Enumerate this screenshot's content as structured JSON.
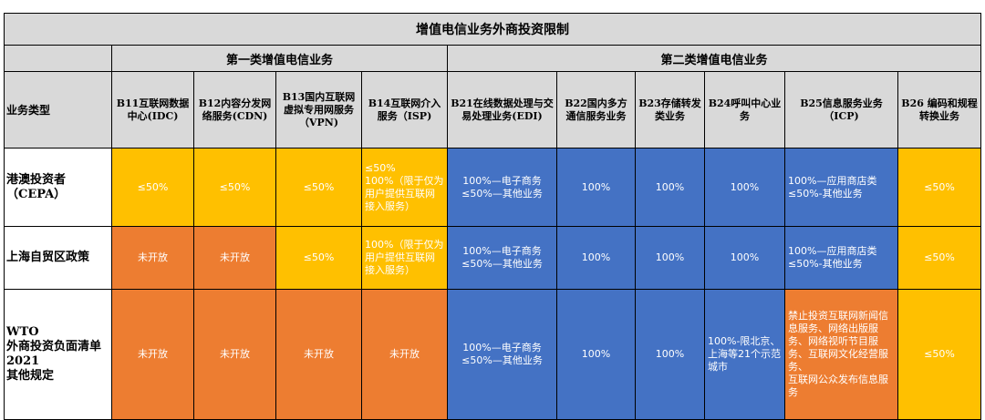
{
  "title": "增值电信业务外商投资限制",
  "group1": "第一类增值电信业务",
  "group2": "第二类增值电信业务",
  "row_header_label": "业务类型",
  "columns": [
    "B11互联网数据中心(IDC)",
    "B12内容分发网络服务(CDN)",
    "B13国内互联网虚拟专用网服务（VPN)",
    "B14互联网介入服务（ISP)",
    "B21在线数据处理与交易处理业务(EDI)",
    "B22国内多方通信服务业务",
    "B23存储转发类业务",
    "B24呼叫中心业务",
    "B25信息服务业务（ICP)",
    "B26 编码和规程转换业务"
  ],
  "rows": [
    {
      "label": "港澳投资者（CEPA）",
      "cells": [
        "≤50%",
        "≤50%",
        "≤50%",
        "≤50%\n100%（限于仅为用户提供互联网接入服务）",
        "100%—电子商务\n≤50%—其他业务",
        "100%",
        "100%",
        "100%",
        "100%—应用商店类\n≤50%-其他业务",
        "≤50%"
      ]
    },
    {
      "label": "上海自贸区政策",
      "cells": [
        "未开放",
        "未开放",
        "≤50%",
        "100%（限于仅为用户提供互联网接入服务）",
        "100%—电子商务\n≤50%—其他业务",
        "100%",
        "100%",
        "100%",
        "100%—应用商店类\n≤50%-其他业务",
        "≤50%"
      ]
    },
    {
      "label": "WTO\n外商投资负面清单2021\n其他规定",
      "cells": [
        "未开放",
        "未开放",
        "未开放",
        "未开放",
        "100%—电子商务\n≤50%—其他业务",
        "100%",
        "100%",
        "100%-限北京、上海等21个示范城市",
        "禁止投资互联网新闻信息服务、网络出版服务、网络视听节目服务、互联网文化经营服务、\n互联网公众发布信息服务",
        "≤50%"
      ]
    }
  ],
  "colors": {
    "yellow": "#ffc000",
    "orange": "#ed7d31",
    "blue": "#4472c4",
    "header_gray": "#d9d9d9"
  }
}
